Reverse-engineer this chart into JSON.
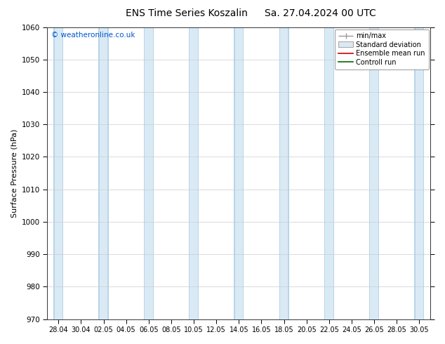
{
  "title_left": "ENS Time Series Koszalin",
  "title_right": "Sa. 27.04.2024 00 UTC",
  "ylabel": "Surface Pressure (hPa)",
  "ylim": [
    970,
    1060
  ],
  "yticks": [
    970,
    980,
    990,
    1000,
    1010,
    1020,
    1030,
    1040,
    1050,
    1060
  ],
  "x_tick_labels": [
    "28.04",
    "30.04",
    "02.05",
    "04.05",
    "06.05",
    "08.05",
    "10.05",
    "12.05",
    "14.05",
    "16.05",
    "18.05",
    "20.05",
    "22.05",
    "24.05",
    "26.05",
    "28.05",
    "30.05"
  ],
  "watermark": "© weatheronline.co.uk",
  "watermark_color": "#0055cc",
  "legend_entries": [
    "min/max",
    "Standard deviation",
    "Ensemble mean run",
    "Controll run"
  ],
  "bg_color": "#ffffff",
  "band_color": "#daeaf5",
  "band_edge_color": "#b8d4e8",
  "title_fontsize": 10,
  "tick_fontsize": 7,
  "ylabel_fontsize": 8,
  "figwidth": 6.34,
  "figheight": 4.9,
  "dpi": 100
}
